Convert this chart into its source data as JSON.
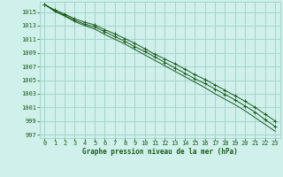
{
  "x": [
    0,
    1,
    2,
    3,
    4,
    5,
    6,
    7,
    8,
    9,
    10,
    11,
    12,
    13,
    14,
    15,
    16,
    17,
    18,
    19,
    20,
    21,
    22,
    23
  ],
  "line1": [
    1016.1,
    1015.3,
    1014.7,
    1014.0,
    1013.5,
    1013.1,
    1012.4,
    1011.8,
    1011.1,
    1010.4,
    1009.6,
    1008.8,
    1008.1,
    1007.4,
    1006.6,
    1005.8,
    1005.1,
    1004.3,
    1003.5,
    1002.7,
    1001.9,
    1001.0,
    1000.0,
    999.0
  ],
  "line2": [
    1016.1,
    1015.1,
    1014.4,
    1013.6,
    1013.0,
    1012.5,
    1011.7,
    1011.0,
    1010.3,
    1009.5,
    1008.7,
    1007.9,
    1007.1,
    1006.3,
    1005.5,
    1004.7,
    1003.9,
    1003.0,
    1002.2,
    1001.4,
    1000.5,
    999.5,
    998.5,
    997.5
  ],
  "line3": [
    1016.1,
    1015.2,
    1014.5,
    1013.8,
    1013.2,
    1012.8,
    1012.1,
    1011.4,
    1010.7,
    1009.9,
    1009.2,
    1008.4,
    1007.6,
    1006.8,
    1006.0,
    1005.2,
    1004.5,
    1003.7,
    1002.9,
    1002.1,
    1001.2,
    1000.3,
    999.2,
    998.2
  ],
  "bg_color": "#cff0eb",
  "grid_color": "#9ecfc5",
  "line_color": "#1a5c1a",
  "tick_color": "#1a5c1a",
  "label_color": "#1a5c1a",
  "title": "Graphe pression niveau de la mer (hPa)",
  "xlim": [
    -0.5,
    23.5
  ],
  "ylim": [
    996.5,
    1016.5
  ],
  "yticks": [
    997,
    999,
    1001,
    1003,
    1005,
    1007,
    1009,
    1011,
    1013,
    1015
  ],
  "xticks": [
    0,
    1,
    2,
    3,
    4,
    5,
    6,
    7,
    8,
    9,
    10,
    11,
    12,
    13,
    14,
    15,
    16,
    17,
    18,
    19,
    20,
    21,
    22,
    23
  ]
}
